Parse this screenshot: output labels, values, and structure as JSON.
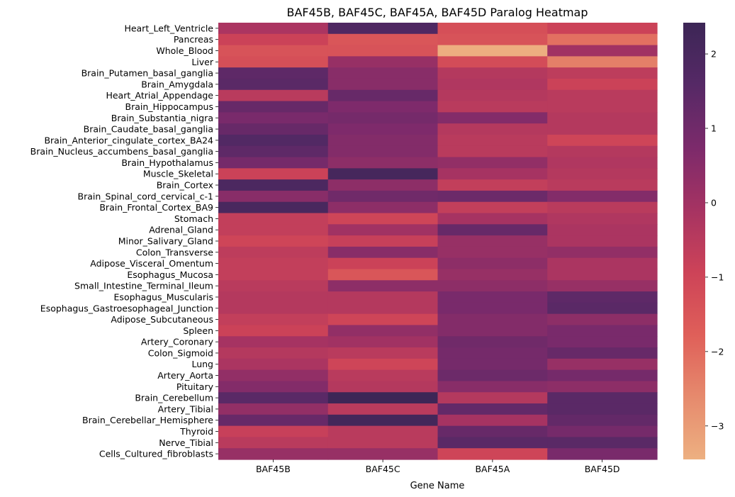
{
  "chart_data": {
    "type": "heatmap",
    "title": "BAF45B, BAF45C, BAF45A, BAF45D Paralog Heatmap",
    "xlabel": "Gene Name",
    "ylabel": "",
    "columns": [
      "BAF45B",
      "BAF45C",
      "BAF45A",
      "BAF45D"
    ],
    "rows": [
      "Heart_Left_Ventricle",
      "Pancreas",
      "Whole_Blood",
      "Liver",
      "Brain_Putamen_basal_ganglia",
      "Brain_Amygdala",
      "Heart_Atrial_Appendage",
      "Brain_Hippocampus",
      "Brain_Substantia_nigra",
      "Brain_Caudate_basal_ganglia",
      "Brain_Anterior_cingulate_cortex_BA24",
      "Brain_Nucleus_accumbens_basal_ganglia",
      "Brain_Hypothalamus",
      "Muscle_Skeletal",
      "Brain_Cortex",
      "Brain_Spinal_cord_cervical_c-1",
      "Brain_Frontal_Cortex_BA9",
      "Stomach",
      "Adrenal_Gland",
      "Minor_Salivary_Gland",
      "Colon_Transverse",
      "Adipose_Visceral_Omentum",
      "Esophagus_Mucosa",
      "Small_Intestine_Terminal_Ileum",
      "Esophagus_Muscularis",
      "Esophagus_Gastroesophageal_Junction",
      "Adipose_Subcutaneous",
      "Spleen",
      "Artery_Coronary",
      "Colon_Sigmoid",
      "Lung",
      "Artery_Aorta",
      "Pituitary",
      "Brain_Cerebellum",
      "Artery_Tibial",
      "Brain_Cerebellar_Hemisphere",
      "Thyroid",
      "Nerve_Tibial",
      "Cells_Cultured_fibroblasts"
    ],
    "values": [
      [
        -0.2,
        1.8,
        -1.3,
        -0.9
      ],
      [
        -0.9,
        -1.5,
        -1.4,
        -2.1
      ],
      [
        -1.4,
        -1.4,
        -3.4,
        0.0
      ],
      [
        -1.3,
        0.2,
        -1.2,
        -2.4
      ],
      [
        1.4,
        0.5,
        -0.4,
        -0.6
      ],
      [
        1.5,
        0.5,
        -0.3,
        -0.9
      ],
      [
        -0.5,
        1.2,
        -0.4,
        -0.5
      ],
      [
        1.2,
        0.7,
        -0.5,
        -0.5
      ],
      [
        0.8,
        0.9,
        0.6,
        -0.4
      ],
      [
        1.2,
        0.7,
        -0.4,
        -0.4
      ],
      [
        1.7,
        0.6,
        -0.5,
        -1.0
      ],
      [
        1.4,
        0.6,
        -0.5,
        -0.4
      ],
      [
        0.9,
        0.4,
        0.3,
        -0.3
      ],
      [
        -0.9,
        2.1,
        -0.1,
        -0.4
      ],
      [
        1.9,
        0.4,
        -0.7,
        -0.5
      ],
      [
        0.5,
        1.0,
        1.1,
        0.6
      ],
      [
        2.0,
        0.4,
        -0.7,
        -0.5
      ],
      [
        -0.7,
        -1.0,
        -0.1,
        -0.3
      ],
      [
        -0.7,
        0.0,
        1.2,
        -0.2
      ],
      [
        -1.0,
        -0.8,
        0.2,
        -0.2
      ],
      [
        -0.6,
        0.5,
        0.2,
        0.3
      ],
      [
        -0.7,
        -0.9,
        0.4,
        -0.2
      ],
      [
        -0.7,
        -1.5,
        0.2,
        -0.2
      ],
      [
        -0.5,
        0.4,
        0.4,
        0.2
      ],
      [
        -0.4,
        -0.4,
        0.8,
        1.4
      ],
      [
        -0.4,
        -0.4,
        0.8,
        1.5
      ],
      [
        -0.7,
        -1.0,
        0.6,
        0.4
      ],
      [
        -0.9,
        0.3,
        0.6,
        0.8
      ],
      [
        -0.1,
        0.0,
        1.0,
        0.8
      ],
      [
        -0.4,
        -0.5,
        0.9,
        1.2
      ],
      [
        -0.2,
        -1.0,
        0.9,
        0.2
      ],
      [
        0.3,
        -0.5,
        1.1,
        0.9
      ],
      [
        0.6,
        -0.4,
        0.5,
        0.4
      ],
      [
        1.5,
        2.4,
        -0.4,
        1.5
      ],
      [
        0.3,
        -0.5,
        1.3,
        1.5
      ],
      [
        1.2,
        2.2,
        -0.1,
        1.3
      ],
      [
        -0.8,
        -0.5,
        1.2,
        0.9
      ],
      [
        -0.5,
        -0.5,
        1.5,
        1.5
      ],
      [
        0.2,
        0.2,
        -1.0,
        0.8
      ]
    ],
    "vmin": -3.45,
    "vmax": 2.42,
    "colorbar_ticks": [
      2,
      1,
      0,
      -1,
      -2,
      -3
    ],
    "colormap": [
      "#edb081",
      "#e68a6d",
      "#df5f59",
      "#cd4358",
      "#a63362",
      "#7c2a6b",
      "#562966",
      "#3c2656"
    ]
  }
}
